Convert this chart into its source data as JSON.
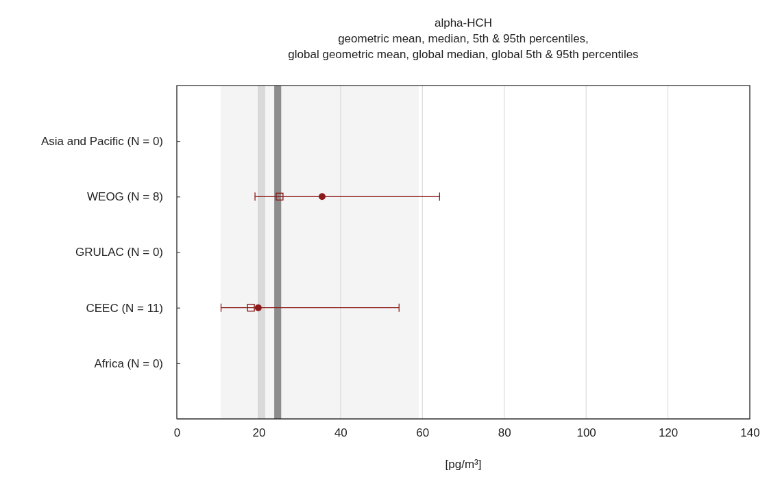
{
  "chart_data": {
    "type": "scatter",
    "orientation": "horizontal",
    "title": "alpha-HCH",
    "subtitle": "geometric mean, median, 5th & 95th percentiles,\nglobal geometric mean, global median, global 5th & 95th percentiles",
    "xlabel": "[pg/m³]",
    "categories": [
      "Asia and Pacific (N = 0)",
      "WEOG (N = 8)",
      "GRULAC (N = 0)",
      "CEEC (N = 11)",
      "Africa (N = 0)"
    ],
    "series": [
      {
        "color": "#8b1a1a",
        "marker": "square",
        "values": [
          null,
          25.1,
          null,
          18.1,
          null
        ]
      },
      {
        "color": "#8b1a1a",
        "marker": "circle",
        "values": [
          null,
          35.5,
          null,
          19.9,
          null
        ],
        "errors": [
          null,
          [
            19.1,
            64.2
          ],
          null,
          [
            10.8,
            54.3
          ],
          null
        ]
      }
    ],
    "bands": [
      {
        "axis": "x",
        "from": 10.7,
        "to": 59.1,
        "color": "#f4f4f4"
      },
      {
        "axis": "x",
        "from": 19.8,
        "to": 21.6,
        "color": "#d9d9d9"
      },
      {
        "axis": "x",
        "from": 23.8,
        "to": 25.5,
        "color": "#8c8c8c"
      }
    ],
    "xlim": [
      0,
      140
    ],
    "xticks": [
      0,
      20,
      40,
      60,
      80,
      100,
      120,
      140
    ],
    "grid": "x"
  }
}
